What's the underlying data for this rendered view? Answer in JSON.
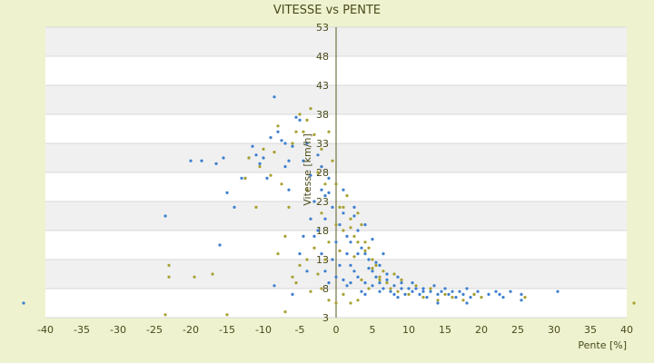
{
  "chart_data": {
    "type": "scatter",
    "title": "VITESSE vs PENTE",
    "xlabel": "Pente [%]",
    "ylabel": "Vitesse [km/h]",
    "xlim": [
      -40,
      40
    ],
    "ylim": [
      3,
      53
    ],
    "xticks": [
      -40,
      -35,
      -30,
      -25,
      -20,
      -15,
      -10,
      -5,
      0,
      5,
      10,
      15,
      20,
      25,
      30,
      35,
      40
    ],
    "yticks": [
      3,
      8,
      13,
      18,
      23,
      28,
      33,
      38,
      43,
      48,
      53
    ],
    "xtick_labels": [
      "-40",
      "-35",
      "-30",
      "-25",
      "-20",
      "-15",
      "-10",
      "-5",
      "0",
      "5",
      "10",
      "15",
      "20",
      "25",
      "30",
      "35",
      "40"
    ],
    "ytick_labels": [
      "3",
      "8",
      "13",
      "18",
      "23",
      "28",
      "33",
      "38",
      "43",
      "48",
      "53"
    ],
    "grid": true,
    "band_color": "#f0f0f0",
    "series": [
      {
        "color": "#3d7fd0",
        "points": [
          [
            -43,
            5.5
          ],
          [
            -23.5,
            20.5
          ],
          [
            -20,
            30
          ],
          [
            -18.5,
            30
          ],
          [
            -16.5,
            29.5
          ],
          [
            -15.5,
            30.5
          ],
          [
            -15,
            24.5
          ],
          [
            -16,
            15.5
          ],
          [
            -14,
            22
          ],
          [
            -13,
            27
          ],
          [
            -12.5,
            27
          ],
          [
            -12,
            30.5
          ],
          [
            -11.5,
            32.5
          ],
          [
            -11,
            31
          ],
          [
            -10.5,
            29.5
          ],
          [
            -10,
            30.5
          ],
          [
            -9.5,
            27
          ],
          [
            -9,
            34
          ],
          [
            -8.5,
            41
          ],
          [
            -8,
            35
          ],
          [
            -7.5,
            33.5
          ],
          [
            -7,
            33
          ],
          [
            -6.5,
            30
          ],
          [
            -6,
            32.5
          ],
          [
            -5.5,
            37.5
          ],
          [
            -5,
            37
          ],
          [
            -4.5,
            30
          ],
          [
            -4,
            33
          ],
          [
            -3.5,
            27.5
          ],
          [
            -3,
            23
          ],
          [
            -2.5,
            31
          ],
          [
            -2,
            25
          ],
          [
            -1.5,
            20
          ],
          [
            -1,
            27
          ],
          [
            -0.5,
            22
          ],
          [
            0,
            16
          ],
          [
            0.5,
            19
          ],
          [
            1,
            21
          ],
          [
            1.5,
            17
          ],
          [
            2,
            16
          ],
          [
            2.5,
            20.5
          ],
          [
            3,
            18
          ],
          [
            3.5,
            15
          ],
          [
            4,
            14
          ],
          [
            4.5,
            13
          ],
          [
            5,
            11
          ],
          [
            5.5,
            10
          ],
          [
            6,
            12
          ],
          [
            6.5,
            8
          ],
          [
            7,
            9.5
          ],
          [
            7.5,
            7.5
          ],
          [
            8,
            8.5
          ],
          [
            8.5,
            10
          ],
          [
            9,
            8
          ],
          [
            9.5,
            7
          ],
          [
            10,
            8
          ],
          [
            10.5,
            7.5
          ],
          [
            11,
            8
          ],
          [
            11.5,
            7
          ],
          [
            12,
            8
          ],
          [
            12.5,
            6.5
          ],
          [
            13,
            7.5
          ],
          [
            13.5,
            8.5
          ],
          [
            14,
            7
          ],
          [
            14.5,
            7.5
          ],
          [
            15,
            8
          ],
          [
            15.5,
            7
          ],
          [
            16,
            7.5
          ],
          [
            16.5,
            6.5
          ],
          [
            17,
            7.5
          ],
          [
            17.5,
            7
          ],
          [
            18,
            8
          ],
          [
            18.5,
            6.5
          ],
          [
            19,
            7
          ],
          [
            19.5,
            7.5
          ],
          [
            21,
            7
          ],
          [
            22,
            7.5
          ],
          [
            23,
            6.5
          ],
          [
            24,
            7.5
          ],
          [
            25.5,
            7
          ],
          [
            30.5,
            7.5
          ],
          [
            -8.5,
            8.5
          ],
          [
            -6,
            7
          ],
          [
            -4,
            11
          ],
          [
            -2,
            14
          ],
          [
            -1,
            9
          ],
          [
            0.5,
            12
          ],
          [
            1,
            9.5
          ],
          [
            2,
            12
          ],
          [
            3,
            10
          ],
          [
            4,
            9
          ],
          [
            6,
            7.5
          ],
          [
            -3.5,
            20
          ],
          [
            -2.5,
            18
          ],
          [
            -1.5,
            24
          ],
          [
            -0.5,
            13
          ],
          [
            1.5,
            8.5
          ],
          [
            3.5,
            7.5
          ],
          [
            5.5,
            12.5
          ],
          [
            7,
            10.5
          ],
          [
            8,
            7
          ],
          [
            9,
            9
          ],
          [
            -5,
            14
          ],
          [
            -4.5,
            17
          ],
          [
            -2,
            29
          ],
          [
            -1,
            24.5
          ],
          [
            0,
            26
          ],
          [
            1,
            25
          ],
          [
            2.5,
            22
          ],
          [
            4,
            19
          ],
          [
            5,
            16.5
          ],
          [
            6.5,
            14
          ],
          [
            -7,
            29
          ],
          [
            -6.5,
            25
          ],
          [
            -3,
            17
          ],
          [
            -1.5,
            11
          ],
          [
            0,
            10
          ],
          [
            1.5,
            14
          ],
          [
            2.5,
            11
          ],
          [
            3,
            14
          ],
          [
            4.5,
            11.5
          ],
          [
            5,
            8.5
          ],
          [
            25.5,
            6
          ],
          [
            18,
            5.5
          ],
          [
            14,
            5.5
          ],
          [
            22.5,
            7
          ],
          [
            12,
            7.5
          ],
          [
            10.5,
            9
          ],
          [
            8.5,
            6.5
          ],
          [
            6,
            9
          ],
          [
            4,
            7
          ],
          [
            2,
            9
          ]
        ]
      },
      {
        "color": "#a8a030",
        "points": [
          [
            -23.5,
            3.5
          ],
          [
            -23,
            10
          ],
          [
            -23,
            12
          ],
          [
            -19.5,
            10
          ],
          [
            -17,
            10.5
          ],
          [
            -15,
            3.5
          ],
          [
            -12.5,
            27
          ],
          [
            -12,
            30.5
          ],
          [
            -11,
            22
          ],
          [
            -10.5,
            29
          ],
          [
            -10,
            32
          ],
          [
            -9,
            27.5
          ],
          [
            -8.5,
            31.5
          ],
          [
            -8,
            36
          ],
          [
            -7.5,
            26
          ],
          [
            -7,
            4
          ],
          [
            -6.5,
            22
          ],
          [
            -6,
            33
          ],
          [
            -5.5,
            35
          ],
          [
            -5,
            38
          ],
          [
            -4.5,
            35
          ],
          [
            -4,
            37
          ],
          [
            -3.5,
            39
          ],
          [
            -3,
            34.5
          ],
          [
            -2.5,
            28
          ],
          [
            -2,
            32
          ],
          [
            -1.5,
            26
          ],
          [
            -1,
            35
          ],
          [
            -0.5,
            30
          ],
          [
            0,
            26
          ],
          [
            0.5,
            22
          ],
          [
            1,
            18
          ],
          [
            1.5,
            24
          ],
          [
            2,
            20
          ],
          [
            2.5,
            17
          ],
          [
            3,
            21
          ],
          [
            3.5,
            19
          ],
          [
            4,
            16
          ],
          [
            4.5,
            15
          ],
          [
            5,
            13
          ],
          [
            5.5,
            12
          ],
          [
            6,
            10
          ],
          [
            6.5,
            11
          ],
          [
            7,
            9
          ],
          [
            7.5,
            8
          ],
          [
            8,
            10.5
          ],
          [
            8.5,
            7.5
          ],
          [
            9,
            9.5
          ],
          [
            10,
            7
          ],
          [
            11,
            8.5
          ],
          [
            12,
            6.5
          ],
          [
            13,
            8
          ],
          [
            14,
            6
          ],
          [
            15,
            7
          ],
          [
            16,
            6.5
          ],
          [
            17.5,
            6
          ],
          [
            19,
            7
          ],
          [
            20,
            6.5
          ],
          [
            26,
            6.5
          ],
          [
            41,
            5.5
          ],
          [
            -6,
            10
          ],
          [
            -5,
            12
          ],
          [
            -4,
            13
          ],
          [
            -3,
            15
          ],
          [
            -2,
            8
          ],
          [
            -1,
            6
          ],
          [
            0,
            5.5
          ],
          [
            1,
            7
          ],
          [
            2,
            5.5
          ],
          [
            3,
            6
          ],
          [
            -8,
            14
          ],
          [
            -7,
            17
          ],
          [
            -5.5,
            9
          ],
          [
            -3.5,
            7.5
          ],
          [
            -2.5,
            10.5
          ],
          [
            -1.5,
            13
          ],
          [
            0.5,
            14.5
          ],
          [
            2.5,
            13.5
          ],
          [
            3.5,
            9.5
          ],
          [
            4.5,
            8
          ],
          [
            -4,
            25
          ],
          [
            -2,
            21
          ],
          [
            -1,
            16
          ],
          [
            0,
            19
          ],
          [
            1,
            22
          ],
          [
            2,
            18.5
          ],
          [
            3,
            16
          ],
          [
            4,
            14.5
          ],
          [
            5,
            11.5
          ],
          [
            6,
            9.5
          ]
        ]
      }
    ]
  }
}
